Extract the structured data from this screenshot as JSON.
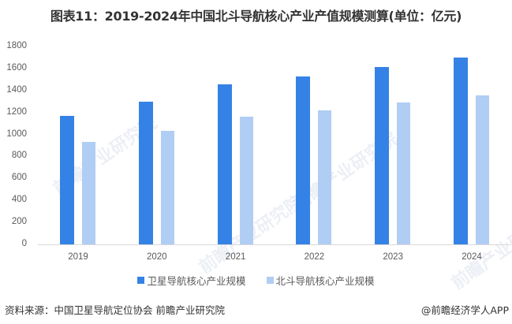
{
  "title": "图表11：2019-2024年中国北斗导航核心产业产值规模测算(单位：亿元)",
  "chart_data": {
    "type": "bar",
    "title": "图表11：2019-2024年中国北斗导航核心产业产值规模测算(单位：亿元)",
    "xlabel": "",
    "ylabel": "亿元",
    "categories": [
      "2019",
      "2020",
      "2021",
      "2022",
      "2023",
      "2024"
    ],
    "series": [
      {
        "name": "卫星导航核心产业规模",
        "color": "#3582e6",
        "values": [
          1170,
          1300,
          1458,
          1528,
          1614,
          1700
        ]
      },
      {
        "name": "北斗导航核心产业规模",
        "color": "#b0cdf4",
        "values": [
          933,
          1033,
          1162,
          1219,
          1291,
          1356
        ]
      }
    ],
    "ylim": [
      0,
      1800
    ],
    "yticks": [
      0,
      200,
      400,
      600,
      800,
      1000,
      1200,
      1400,
      1600,
      1800
    ],
    "grid": false,
    "legend_position": "bottom"
  },
  "legend": [
    {
      "label": "卫星导航核心产业规模",
      "color": "#3582e6"
    },
    {
      "label": "北斗导航核心产业规模",
      "color": "#b0cdf4"
    }
  ],
  "footer": {
    "source": "资料来源：中国卫星导航定位协会 前瞻产业研究院",
    "credit": "@前瞻经济学人APP"
  },
  "watermark": "前瞻产业研究院"
}
